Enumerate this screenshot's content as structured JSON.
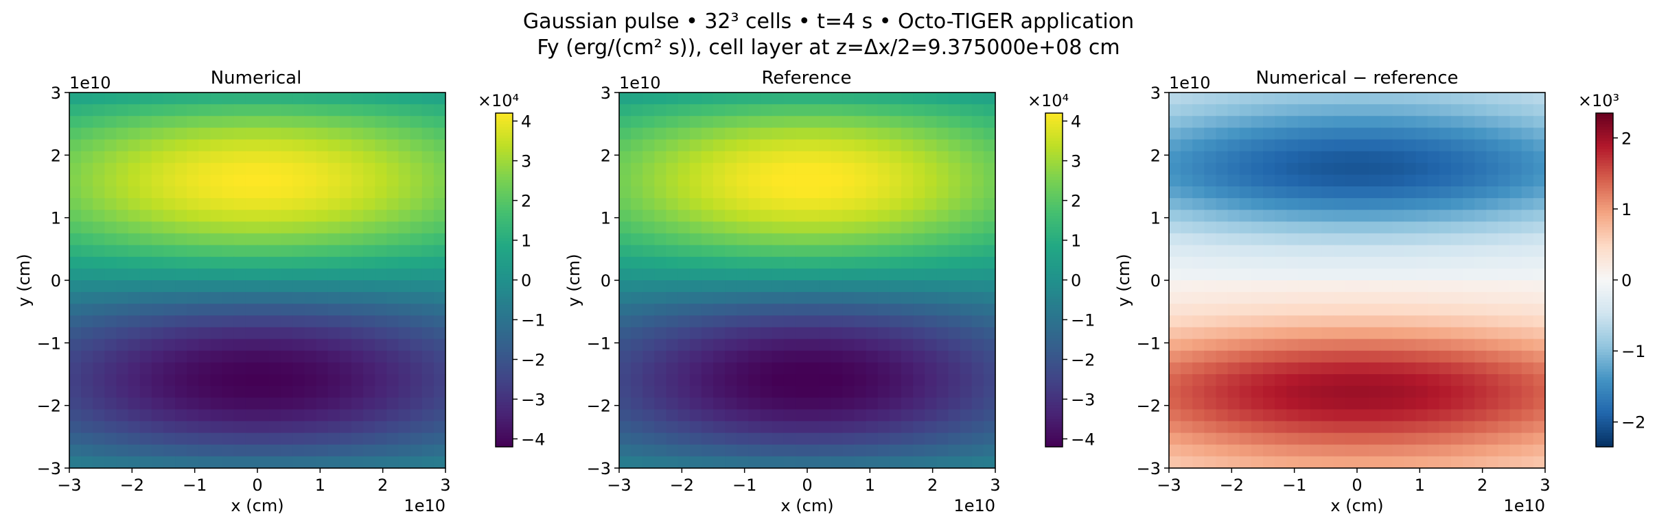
{
  "figure": {
    "title_line1": "Gaussian pulse • 32³ cells • t=4 s • Octo-TIGER application",
    "title_line2": "Fy (erg/(cm² s)), cell layer at z=Δx/2=9.375000e+08 cm"
  },
  "chart_data": [
    {
      "type": "heatmap",
      "title": "Numerical",
      "xlabel": "x (cm)",
      "ylabel": "y (cm)",
      "x_offset_label": "1e10",
      "y_offset_label": "1e10",
      "xlim": [
        -30000000000.0,
        30000000000.0
      ],
      "ylim": [
        -30000000000.0,
        30000000000.0
      ],
      "xticks": [
        -3,
        -2,
        -1,
        0,
        1,
        2,
        3
      ],
      "yticks": [
        -3,
        -2,
        -1,
        0,
        1,
        2,
        3
      ],
      "grid_size": 32,
      "colormap": "viridis",
      "field": "Fy",
      "field_model": {
        "amplitude": 42000,
        "x_sigma": 30000000000.0,
        "y_peak": 15500000000.0
      },
      "colorbar": {
        "range": [
          -4.2,
          4.2
        ],
        "ticks": [
          -4,
          -3,
          -2,
          -1,
          0,
          1,
          2,
          3,
          4
        ],
        "multiplier": "×10⁴"
      }
    },
    {
      "type": "heatmap",
      "title": "Reference",
      "xlabel": "x (cm)",
      "ylabel": "y (cm)",
      "x_offset_label": "1e10",
      "y_offset_label": "1e10",
      "xlim": [
        -30000000000.0,
        30000000000.0
      ],
      "ylim": [
        -30000000000.0,
        30000000000.0
      ],
      "xticks": [
        -3,
        -2,
        -1,
        0,
        1,
        2,
        3
      ],
      "yticks": [
        -3,
        -2,
        -1,
        0,
        1,
        2,
        3
      ],
      "grid_size": 32,
      "colormap": "viridis",
      "field": "Fy",
      "field_model": {
        "amplitude": 42500,
        "x_sigma": 28000000000.0,
        "y_peak": 15500000000.0
      },
      "colorbar": {
        "range": [
          -4.2,
          4.2
        ],
        "ticks": [
          -4,
          -3,
          -2,
          -1,
          0,
          1,
          2,
          3,
          4
        ],
        "multiplier": "×10⁴"
      }
    },
    {
      "type": "heatmap",
      "title": "Numerical − reference",
      "xlabel": "x (cm)",
      "ylabel": "y (cm)",
      "x_offset_label": "1e10",
      "y_offset_label": "1e10",
      "xlim": [
        -30000000000.0,
        30000000000.0
      ],
      "ylim": [
        -30000000000.0,
        30000000000.0
      ],
      "xticks": [
        -3,
        -2,
        -1,
        0,
        1,
        2,
        3
      ],
      "yticks": [
        -3,
        -2,
        -1,
        0,
        1,
        2,
        3
      ],
      "grid_size": 32,
      "colormap": "RdBu_r",
      "field": "difference",
      "field_model": {
        "amplitude": 2200,
        "x_sigma": 35000000000.0,
        "y_peak": 17500000000.0
      },
      "colorbar": {
        "range": [
          -2.35,
          2.35
        ],
        "ticks": [
          -2,
          -1,
          0,
          1,
          2
        ],
        "multiplier": "×10³"
      }
    }
  ]
}
